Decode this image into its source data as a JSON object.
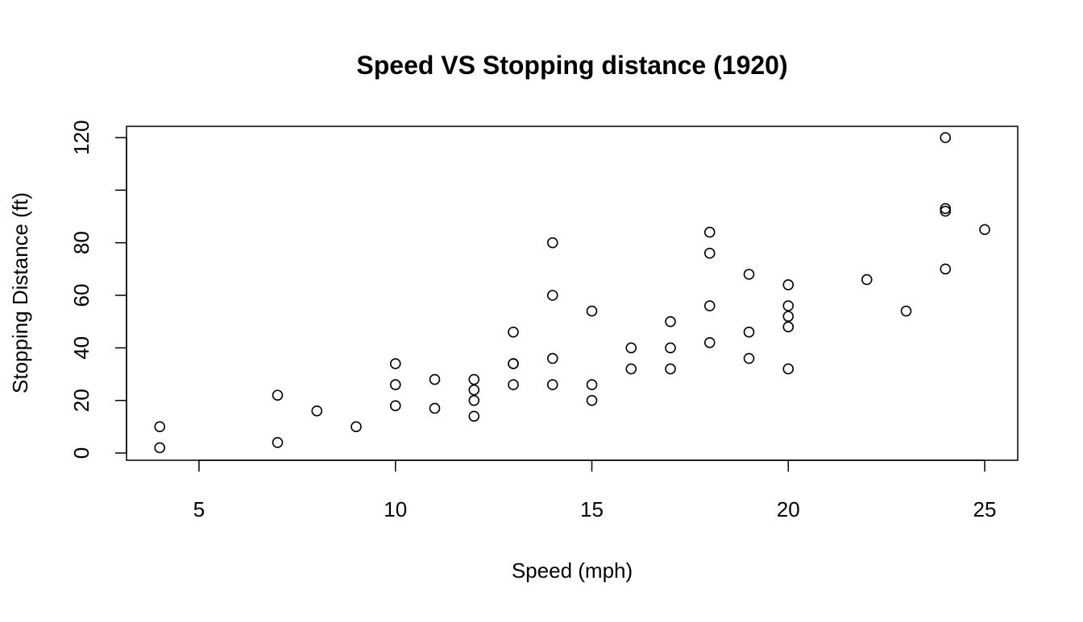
{
  "chart_data": {
    "type": "scatter",
    "title": "Speed VS Stopping distance (1920)",
    "xlabel": "Speed (mph)",
    "ylabel": "Stopping Distance (ft)",
    "xlim": [
      3,
      25.7
    ],
    "ylim": [
      -2.7,
      124.7
    ],
    "xticks": [
      5,
      10,
      15,
      20,
      25
    ],
    "xtick_labels": [
      "5",
      "10",
      "15",
      "20",
      "25"
    ],
    "yticks": [
      0,
      20,
      40,
      60,
      80,
      100,
      120
    ],
    "ytick_labels": [
      "0",
      "20",
      "40",
      "60",
      "80",
      "",
      "120"
    ],
    "grid": false,
    "marker": "open-circle",
    "x": [
      4,
      4,
      7,
      7,
      8,
      9,
      10,
      10,
      10,
      11,
      11,
      12,
      12,
      12,
      12,
      13,
      13,
      13,
      13,
      14,
      14,
      14,
      14,
      15,
      15,
      15,
      16,
      16,
      17,
      17,
      17,
      18,
      18,
      18,
      18,
      19,
      19,
      19,
      20,
      20,
      20,
      20,
      20,
      22,
      23,
      24,
      24,
      24,
      24,
      25
    ],
    "y": [
      2,
      10,
      4,
      22,
      16,
      10,
      18,
      26,
      34,
      17,
      28,
      14,
      20,
      24,
      28,
      26,
      34,
      34,
      46,
      26,
      36,
      60,
      80,
      20,
      26,
      54,
      32,
      40,
      32,
      40,
      50,
      42,
      56,
      76,
      84,
      36,
      46,
      68,
      32,
      48,
      52,
      56,
      64,
      66,
      54,
      70,
      92,
      93,
      120,
      85
    ]
  }
}
